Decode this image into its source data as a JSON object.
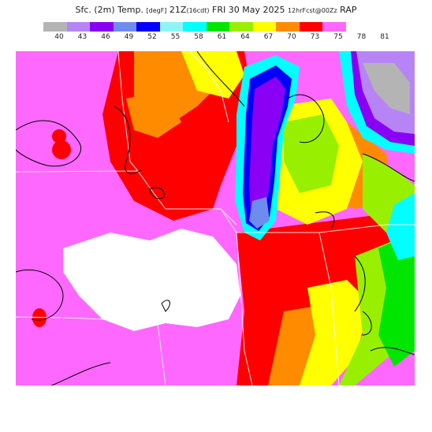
{
  "header": {
    "title_main": "Sfc. (2m) Temp.",
    "title_unit": "[degF]",
    "title_time": "21Z",
    "title_local": "(16cdt)",
    "title_date": "FRI 30 May 2025",
    "title_fcst": "12hrFcst@00Zz",
    "title_model": "RAP"
  },
  "colorbar": {
    "levels": [
      "40",
      "43",
      "46",
      "49",
      "52",
      "55",
      "58",
      "61",
      "64",
      "67",
      "70",
      "73",
      "75",
      "78",
      "81"
    ],
    "colors": [
      "#b4b4b4",
      "#b784f6",
      "#8a00f4",
      "#6e8cf0",
      "#0000f8",
      "#8cf6f6",
      "#00ffff",
      "#00e600",
      "#98f000",
      "#ffff00",
      "#ff8c00",
      "#ff0000",
      "#ff68ff",
      "#ffffff"
    ]
  },
  "map": {
    "region": "Upper Midwest / Great Lakes",
    "fill_colors": {
      "hot_pink": "#ff68ff",
      "red": "#ff0000",
      "orange": "#ff8c00",
      "yellow": "#ffff00",
      "lime": "#98f000",
      "green": "#00e600",
      "cyan": "#00ffff",
      "lightcyan": "#8cf6f6",
      "blue": "#0000f8",
      "periwinkle": "#6e8cf0",
      "violet": "#8a00f4",
      "lavender": "#b784f6",
      "gray": "#b4b4b4",
      "white": "#ffffff"
    }
  }
}
